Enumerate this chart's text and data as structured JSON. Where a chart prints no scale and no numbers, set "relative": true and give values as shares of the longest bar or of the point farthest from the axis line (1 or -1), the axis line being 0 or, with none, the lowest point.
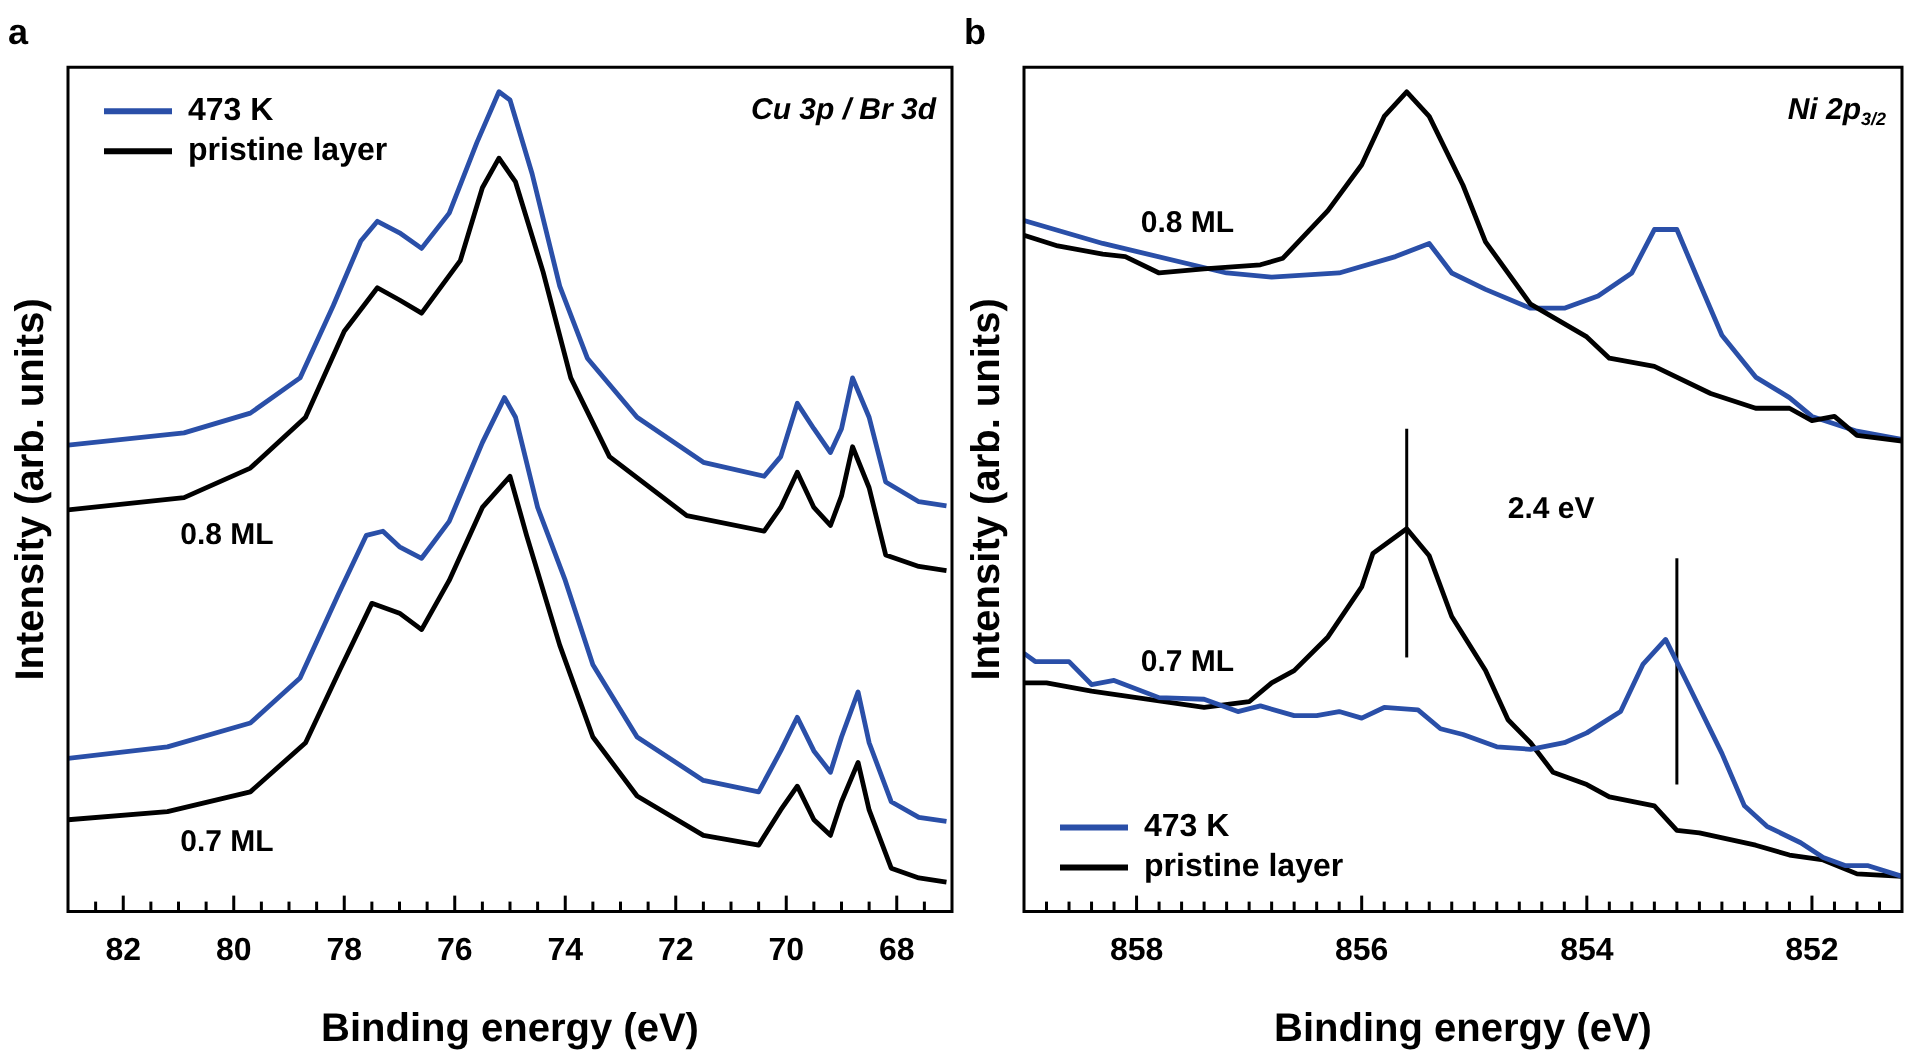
{
  "chart_data": [
    {
      "type": "line",
      "title": "a",
      "xlabel": "Binding energy (eV)",
      "ylabel": "Intensity (arb. units)",
      "relative": true,
      "grid": false,
      "marker": "none",
      "legend": "top left",
      "xlim": [
        83,
        67
      ],
      "xticks": [
        {
          "value": 82.5,
          "label": null
        },
        82,
        {
          "value": 81.5,
          "label": null
        },
        {
          "value": 81,
          "label": null
        },
        {
          "value": 80.5,
          "label": null
        },
        80,
        {
          "value": 79.5,
          "label": null
        },
        {
          "value": 79,
          "label": null
        },
        {
          "value": 78.5,
          "label": null
        },
        78,
        {
          "value": 77.5,
          "label": null
        },
        {
          "value": 77,
          "label": null
        },
        {
          "value": 76.5,
          "label": null
        },
        76,
        {
          "value": 75.5,
          "label": null
        },
        {
          "value": 75,
          "label": null
        },
        {
          "value": 74.5,
          "label": null
        },
        74,
        {
          "value": 73.5,
          "label": null
        },
        {
          "value": 73,
          "label": null
        },
        {
          "value": 72.5,
          "label": null
        },
        72,
        {
          "value": 71.5,
          "label": null
        },
        {
          "value": 71,
          "label": null
        },
        {
          "value": 70.5,
          "label": null
        },
        70,
        {
          "value": 69.5,
          "label": null
        },
        {
          "value": 69,
          "label": null
        },
        {
          "value": 68.5,
          "label": null
        },
        68,
        {
          "value": 67.5,
          "label": null
        }
      ],
      "annotations": [
        "Cu 3p / Br 3d",
        "0.8 ML",
        "0.7 ML"
      ],
      "series": [
        {
          "name": "473 K",
          "color": "#2a4fa8",
          "x": [
            83,
            80.9,
            79.7,
            78.8,
            78.2,
            77.7,
            77.4,
            77.0,
            76.6,
            76.1,
            75.6,
            75.2,
            75.0,
            74.6,
            74.1,
            73.6,
            72.7,
            71.5,
            70.4,
            70.1,
            69.8,
            69.5,
            69.2,
            69.0,
            68.8,
            68.5,
            68.2,
            67.6,
            67.1
          ],
          "values": [
            0.569,
            0.584,
            0.608,
            0.651,
            0.739,
            0.818,
            0.842,
            0.828,
            0.809,
            0.852,
            0.938,
            1.0,
            0.99,
            0.9,
            0.763,
            0.675,
            0.603,
            0.548,
            0.531,
            0.555,
            0.62,
            0.589,
            0.56,
            0.589,
            0.651,
            0.603,
            0.524,
            0.5,
            0.495
          ]
        },
        {
          "name": "pristine layer",
          "color": "#000000",
          "x": [
            83,
            80.9,
            79.7,
            78.7,
            78.0,
            77.4,
            77.0,
            76.6,
            75.9,
            75.5,
            75.2,
            74.9,
            74.4,
            73.9,
            73.2,
            71.8,
            70.4,
            70.1,
            69.8,
            69.5,
            69.2,
            69.0,
            68.8,
            68.5,
            68.2,
            67.6,
            67.1
          ],
          "values": [
            0.49,
            0.505,
            0.541,
            0.603,
            0.708,
            0.761,
            0.746,
            0.73,
            0.794,
            0.883,
            0.919,
            0.89,
            0.78,
            0.651,
            0.555,
            0.483,
            0.464,
            0.493,
            0.536,
            0.493,
            0.471,
            0.507,
            0.567,
            0.517,
            0.435,
            0.421,
            0.416
          ]
        },
        {
          "color": "#2a4fa8",
          "x": [
            83,
            81.2,
            79.7,
            78.8,
            78.1,
            77.6,
            77.3,
            77.0,
            76.6,
            76.1,
            75.5,
            75.1,
            74.9,
            74.5,
            74.0,
            73.5,
            72.7,
            71.5,
            70.5,
            70.1,
            69.8,
            69.5,
            69.2,
            69.0,
            68.7,
            68.5,
            68.1,
            67.6,
            67.1
          ],
          "values": [
            0.187,
            0.201,
            0.23,
            0.285,
            0.388,
            0.459,
            0.464,
            0.445,
            0.431,
            0.476,
            0.572,
            0.627,
            0.603,
            0.493,
            0.404,
            0.301,
            0.213,
            0.16,
            0.146,
            0.196,
            0.237,
            0.196,
            0.17,
            0.213,
            0.268,
            0.206,
            0.134,
            0.115,
            0.11
          ]
        },
        {
          "color": "#000000",
          "x": [
            83,
            81.2,
            79.7,
            78.7,
            78.1,
            77.5,
            77.0,
            76.6,
            76.1,
            75.5,
            75.0,
            74.7,
            74.1,
            73.5,
            72.7,
            71.5,
            70.5,
            70.1,
            69.8,
            69.5,
            69.2,
            69.0,
            68.7,
            68.5,
            68.1,
            67.6,
            67.1
          ],
          "values": [
            0.112,
            0.122,
            0.146,
            0.206,
            0.292,
            0.376,
            0.364,
            0.344,
            0.404,
            0.493,
            0.531,
            0.459,
            0.325,
            0.213,
            0.141,
            0.093,
            0.081,
            0.124,
            0.153,
            0.112,
            0.093,
            0.134,
            0.182,
            0.124,
            0.053,
            0.041,
            0.036
          ]
        }
      ]
    },
    {
      "type": "line",
      "title": "b",
      "xlabel": "Binding energy (eV)",
      "ylabel": "Intensity (arb. units)",
      "relative": true,
      "grid": false,
      "marker": "none",
      "legend": "bottom left",
      "xlim": [
        859,
        851.2
      ],
      "xticks": [
        {
          "value": 858.8,
          "label": null
        },
        {
          "value": 858.6,
          "label": null
        },
        {
          "value": 858.4,
          "label": null
        },
        {
          "value": 858.2,
          "label": null
        },
        858,
        {
          "value": 857.8,
          "label": null
        },
        {
          "value": 857.6,
          "label": null
        },
        {
          "value": 857.4,
          "label": null
        },
        {
          "value": 857.2,
          "label": null
        },
        {
          "value": 857,
          "label": null
        },
        {
          "value": 856.8,
          "label": null
        },
        {
          "value": 856.6,
          "label": null
        },
        {
          "value": 856.4,
          "label": null
        },
        {
          "value": 856.2,
          "label": null
        },
        856,
        {
          "value": 855.8,
          "label": null
        },
        {
          "value": 855.6,
          "label": null
        },
        {
          "value": 855.4,
          "label": null
        },
        {
          "value": 855.2,
          "label": null
        },
        {
          "value": 855,
          "label": null
        },
        {
          "value": 854.8,
          "label": null
        },
        {
          "value": 854.6,
          "label": null
        },
        {
          "value": 854.4,
          "label": null
        },
        {
          "value": 854.2,
          "label": null
        },
        854,
        {
          "value": 853.8,
          "label": null
        },
        {
          "value": 853.6,
          "label": null
        },
        {
          "value": 853.4,
          "label": null
        },
        {
          "value": 853.2,
          "label": null
        },
        {
          "value": 853,
          "label": null
        },
        {
          "value": 852.8,
          "label": null
        },
        {
          "value": 852.6,
          "label": null
        },
        {
          "value": 852.4,
          "label": null
        },
        {
          "value": 852.2,
          "label": null
        },
        852,
        {
          "value": 851.8,
          "label": null
        },
        {
          "value": 851.6,
          "label": null
        },
        {
          "value": 851.4,
          "label": null
        }
      ],
      "annotations": [
        "Ni 2p$_{3/2}$",
        "0.8 ML",
        "0.7 ML",
        "2.4 eV"
      ],
      "series": [
        {
          "color": "#000000",
          "x": [
            859.0,
            858.7,
            858.3,
            858.1,
            857.8,
            857.4,
            856.9,
            856.7,
            856.3,
            856.0,
            855.8,
            855.6,
            855.4,
            855.1,
            854.9,
            854.5,
            854.0,
            853.8,
            853.4,
            852.9,
            852.5,
            852.2,
            852.0,
            851.8,
            851.6,
            851.2
          ],
          "values": [
            0.825,
            0.812,
            0.802,
            0.799,
            0.779,
            0.784,
            0.789,
            0.797,
            0.855,
            0.911,
            0.97,
            1.0,
            0.97,
            0.886,
            0.817,
            0.741,
            0.701,
            0.675,
            0.665,
            0.632,
            0.614,
            0.614,
            0.599,
            0.604,
            0.581,
            0.574
          ]
        },
        {
          "color": "#2a4fa8",
          "x": [
            859.0,
            858.3,
            857.2,
            856.8,
            856.2,
            855.7,
            855.4,
            855.2,
            854.9,
            854.5,
            854.2,
            853.9,
            853.6,
            853.4,
            853.2,
            853.0,
            852.8,
            852.5,
            852.2,
            852.0,
            851.6,
            851.2
          ],
          "values": [
            0.843,
            0.815,
            0.779,
            0.774,
            0.779,
            0.799,
            0.815,
            0.779,
            0.759,
            0.736,
            0.736,
            0.751,
            0.779,
            0.832,
            0.832,
            0.767,
            0.703,
            0.652,
            0.627,
            0.604,
            0.586,
            0.576
          ]
        },
        {
          "name": "473 K",
          "color": "#2a4fa8",
          "x": [
            859.0,
            858.9,
            858.6,
            858.4,
            858.2,
            857.8,
            857.4,
            857.1,
            856.9,
            856.6,
            856.4,
            856.2,
            856.0,
            855.8,
            855.5,
            855.3,
            855.1,
            854.8,
            854.5,
            854.2,
            854.0,
            853.7,
            853.5,
            853.3,
            853.1,
            852.8,
            852.6,
            852.4,
            852.1,
            851.9,
            851.7,
            851.5,
            851.2
          ],
          "values": [
            0.315,
            0.305,
            0.305,
            0.277,
            0.282,
            0.261,
            0.259,
            0.244,
            0.251,
            0.239,
            0.239,
            0.244,
            0.236,
            0.249,
            0.246,
            0.223,
            0.216,
            0.201,
            0.198,
            0.206,
            0.218,
            0.244,
            0.302,
            0.332,
            0.277,
            0.193,
            0.129,
            0.104,
            0.084,
            0.066,
            0.056,
            0.056,
            0.043
          ]
        },
        {
          "name": "pristine layer",
          "color": "#000000",
          "x": [
            859.0,
            858.8,
            858.4,
            858.0,
            857.4,
            857.0,
            856.8,
            856.6,
            856.3,
            856.0,
            855.9,
            855.6,
            855.4,
            855.2,
            854.9,
            854.7,
            854.5,
            854.3,
            854.0,
            853.8,
            853.4,
            853.2,
            853.0,
            852.5,
            852.2,
            851.9,
            851.6,
            851.2
          ],
          "values": [
            0.279,
            0.279,
            0.269,
            0.261,
            0.249,
            0.256,
            0.279,
            0.294,
            0.335,
            0.396,
            0.437,
            0.467,
            0.434,
            0.36,
            0.294,
            0.234,
            0.206,
            0.17,
            0.155,
            0.14,
            0.129,
            0.099,
            0.096,
            0.081,
            0.069,
            0.063,
            0.046,
            0.043
          ]
        },
        {
          "color": "#000000",
          "x": [
            855.6,
            855.6
          ],
          "values": [
            0.31,
            0.589
          ]
        },
        {
          "color": "#000000",
          "x": [
            853.2,
            853.2
          ],
          "values": [
            0.155,
            0.431
          ]
        }
      ]
    }
  ]
}
